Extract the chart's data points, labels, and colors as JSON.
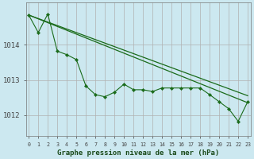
{
  "title": "Graphe pression niveau de la mer (hPa)",
  "background_color": "#cce8f0",
  "grid_color": "#b0b0b0",
  "line_color": "#1a6b1a",
  "x_labels": [
    "0",
    "1",
    "2",
    "3",
    "4",
    "5",
    "6",
    "7",
    "8",
    "9",
    "10",
    "11",
    "12",
    "13",
    "14",
    "15",
    "16",
    "17",
    "18",
    "19",
    "20",
    "21",
    "22",
    "23"
  ],
  "y_ticks": [
    1012,
    1013,
    1014
  ],
  "ylim": [
    1011.4,
    1015.2
  ],
  "xlim": [
    -0.3,
    23.3
  ],
  "trend1_x": [
    0,
    23
  ],
  "trend1_y": [
    1014.85,
    1012.35
  ],
  "trend2_x": [
    0,
    23
  ],
  "trend2_y": [
    1014.85,
    1012.55
  ],
  "jagged_y": [
    1014.85,
    1014.35,
    1014.88,
    1013.82,
    1013.72,
    1013.58,
    1012.83,
    1012.58,
    1012.52,
    1012.65,
    1012.88,
    1012.72,
    1012.72,
    1012.67,
    1012.77,
    1012.77,
    1012.77,
    1012.77,
    1012.77,
    1012.58,
    1012.38,
    1012.18,
    1011.82,
    1012.38
  ]
}
